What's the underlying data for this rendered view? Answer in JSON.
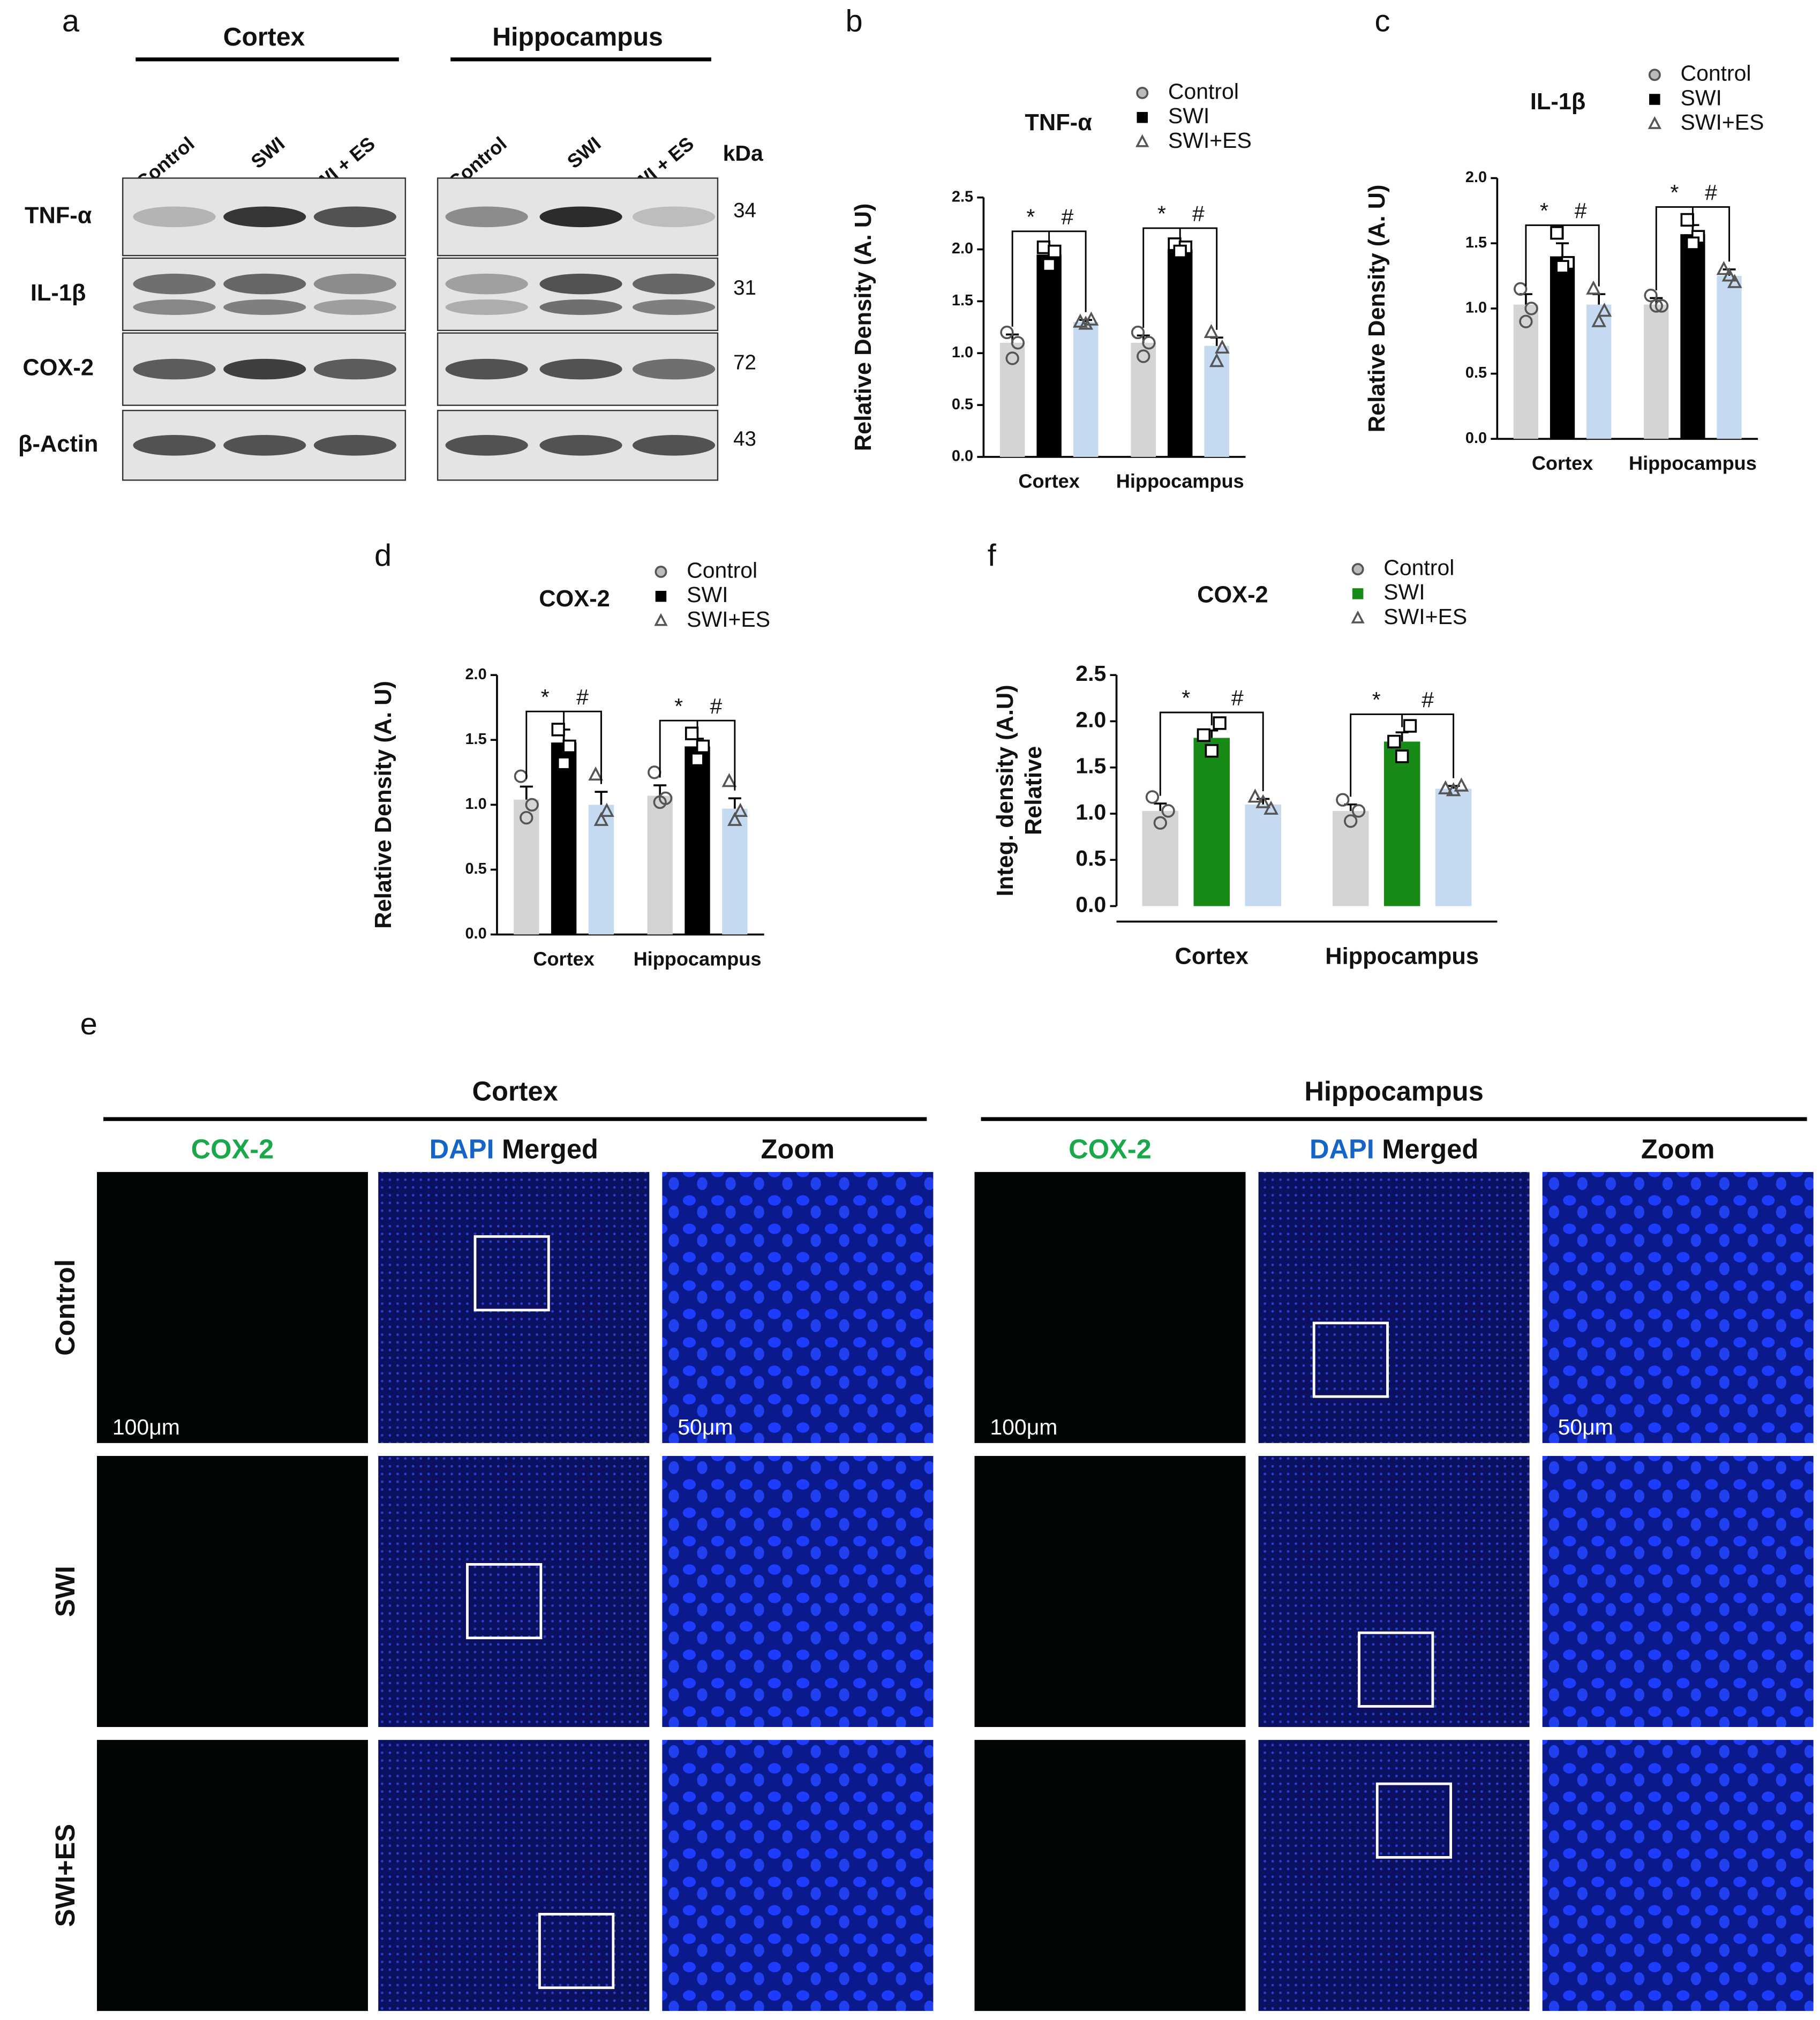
{
  "blot": {
    "panel": "a",
    "regions": [
      "Cortex",
      "Hippocampus"
    ],
    "lanes": [
      "Control",
      "SWI",
      "SWI + ES"
    ],
    "unit": "kDa",
    "rows": [
      {
        "label": "TNF-α",
        "kda": "34"
      },
      {
        "label": "IL-1β",
        "kda": "31"
      },
      {
        "label": "COX-2",
        "kda": "72"
      },
      {
        "label": "β-Actin",
        "kda": "43"
      }
    ]
  },
  "chart_data": [
    {
      "type": "bar",
      "panel": "b",
      "title": "TNF-α",
      "ylabel": [
        "Relative Density (A. U)"
      ],
      "categories": [
        "Cortex",
        "Hippocampus"
      ],
      "ylim": [
        0,
        2.5
      ],
      "yticks": [
        {
          "value": 0,
          "label": "0.0"
        },
        0.5,
        {
          "value": 1,
          "label": "1.0"
        },
        1.5,
        {
          "value": 2,
          "label": "2.0"
        },
        2.5
      ],
      "annotations": [
        [
          "*",
          "#"
        ],
        [
          "*",
          "#"
        ]
      ],
      "series": [
        {
          "name": "Control",
          "color": "#d4d4d4",
          "marker": "circle",
          "values": [
            1.1,
            1.1
          ],
          "errors": [
            0.08,
            0.07
          ],
          "points": [
            [
              1.2,
              1.1,
              0.95
            ],
            [
              1.2,
              1.1,
              0.97
            ]
          ]
        },
        {
          "name": "SWI",
          "color": "#000000",
          "marker": "square",
          "values": [
            1.95,
            2.0
          ],
          "errors": [
            0.05,
            0.03
          ],
          "points": [
            [
              2.02,
              1.98,
              1.85
            ],
            [
              2.05,
              2.02,
              1.98
            ]
          ]
        },
        {
          "name": "SWI+ES",
          "color": "#c5d9f1",
          "marker": "triangle",
          "values": [
            1.3,
            1.07
          ],
          "errors": [
            0.02,
            0.08
          ],
          "points": [
            [
              1.3,
              1.32,
              1.28
            ],
            [
              1.2,
              1.05,
              0.92
            ]
          ]
        }
      ]
    },
    {
      "type": "bar",
      "panel": "c",
      "title": "IL-1β",
      "ylabel": [
        "Relative Density (A. U)"
      ],
      "categories": [
        "Cortex",
        "Hippocampus"
      ],
      "ylim": [
        0,
        2
      ],
      "yticks": [
        {
          "value": 0,
          "label": "0.0"
        },
        0.5,
        {
          "value": 1,
          "label": "1.0"
        },
        1.5,
        {
          "value": 2,
          "label": "2.0"
        }
      ],
      "annotations": [
        [
          "*",
          "#"
        ],
        [
          "*",
          "#"
        ]
      ],
      "series": [
        {
          "name": "Control",
          "color": "#d4d4d4",
          "marker": "circle",
          "values": [
            1.03,
            1.03
          ],
          "errors": [
            0.08,
            0.05
          ],
          "points": [
            [
              1.15,
              1.0,
              0.9
            ],
            [
              1.1,
              1.02,
              1.02
            ]
          ]
        },
        {
          "name": "SWI",
          "color": "#000000",
          "marker": "square",
          "values": [
            1.4,
            1.57
          ],
          "errors": [
            0.1,
            0.07
          ],
          "points": [
            [
              1.58,
              1.35,
              1.32
            ],
            [
              1.68,
              1.55,
              1.5
            ]
          ]
        },
        {
          "name": "SWI+ES",
          "color": "#c5d9f1",
          "marker": "triangle",
          "values": [
            1.03,
            1.25
          ],
          "errors": [
            0.08,
            0.05
          ],
          "points": [
            [
              1.15,
              0.98,
              0.9
            ],
            [
              1.3,
              1.2,
              1.25
            ]
          ]
        }
      ]
    },
    {
      "type": "bar",
      "panel": "d",
      "title": "COX-2",
      "ylabel": [
        "Relative Density (A. U)"
      ],
      "categories": [
        "Cortex",
        "Hippocampus"
      ],
      "ylim": [
        0,
        2
      ],
      "yticks": [
        {
          "value": 0,
          "label": "0.0"
        },
        0.5,
        {
          "value": 1,
          "label": "1.0"
        },
        1.5,
        {
          "value": 2,
          "label": "2.0"
        }
      ],
      "annotations": [
        [
          "*",
          "#"
        ],
        [
          "*",
          "#"
        ]
      ],
      "series": [
        {
          "name": "Control",
          "color": "#d4d4d4",
          "marker": "circle",
          "values": [
            1.04,
            1.07
          ],
          "errors": [
            0.1,
            0.08
          ],
          "points": [
            [
              1.22,
              1.0,
              0.9
            ],
            [
              1.25,
              1.05,
              1.02
            ]
          ]
        },
        {
          "name": "SWI",
          "color": "#000000",
          "marker": "square",
          "values": [
            1.48,
            1.45
          ],
          "errors": [
            0.1,
            0.06
          ],
          "points": [
            [
              1.58,
              1.45,
              1.32
            ],
            [
              1.55,
              1.45,
              1.35
            ]
          ]
        },
        {
          "name": "SWI+ES",
          "color": "#c5d9f1",
          "marker": "triangle",
          "values": [
            1.0,
            0.97
          ],
          "errors": [
            0.1,
            0.08
          ],
          "points": [
            [
              1.23,
              0.95,
              0.88
            ],
            [
              1.18,
              0.95,
              0.88
            ]
          ]
        }
      ]
    },
    {
      "type": "bar",
      "panel": "f",
      "title": "COX-2",
      "ylabel": [
        "Integ. density (A.U)",
        "Relative"
      ],
      "categories": [
        "Cortex",
        "Hippocampus"
      ],
      "ylim": [
        0,
        2.5
      ],
      "yticks": [
        {
          "value": 0,
          "label": "0.0"
        },
        0.5,
        {
          "value": 1,
          "label": "1.0"
        },
        1.5,
        {
          "value": 2,
          "label": "2.0"
        },
        2.5
      ],
      "annotations": [
        [
          "*",
          "#"
        ],
        [
          "*",
          "#"
        ]
      ],
      "series": [
        {
          "name": "Control",
          "color": "#d4d4d4",
          "marker": "circle",
          "values": [
            1.03,
            1.03
          ],
          "errors": [
            0.08,
            0.07
          ],
          "points": [
            [
              1.18,
              1.03,
              0.9
            ],
            [
              1.15,
              1.03,
              0.92
            ]
          ]
        },
        {
          "name": "SWI",
          "color": "#178a17",
          "marker": "square",
          "values": [
            1.82,
            1.78
          ],
          "errors": [
            0.08,
            0.1
          ],
          "points": [
            [
              1.85,
              1.98,
              1.68
            ],
            [
              1.78,
              1.95,
              1.62
            ]
          ]
        },
        {
          "name": "SWI+ES",
          "color": "#c5d9f1",
          "marker": "triangle",
          "values": [
            1.1,
            1.27
          ],
          "errors": [
            0.06,
            0.03
          ],
          "points": [
            [
              1.18,
              1.05,
              1.12
            ],
            [
              1.27,
              1.3,
              1.25
            ]
          ]
        }
      ]
    }
  ],
  "imaging": {
    "panel": "e",
    "regions": [
      "Cortex",
      "Hippocampus"
    ],
    "channel": "COX-2",
    "stain": "DAPI",
    "merged": "Merged",
    "zoom": "Zoom",
    "rows": [
      "Control",
      "SWI",
      "SWI+ES"
    ],
    "scale_bars": [
      "100μm",
      "50μm"
    ]
  }
}
